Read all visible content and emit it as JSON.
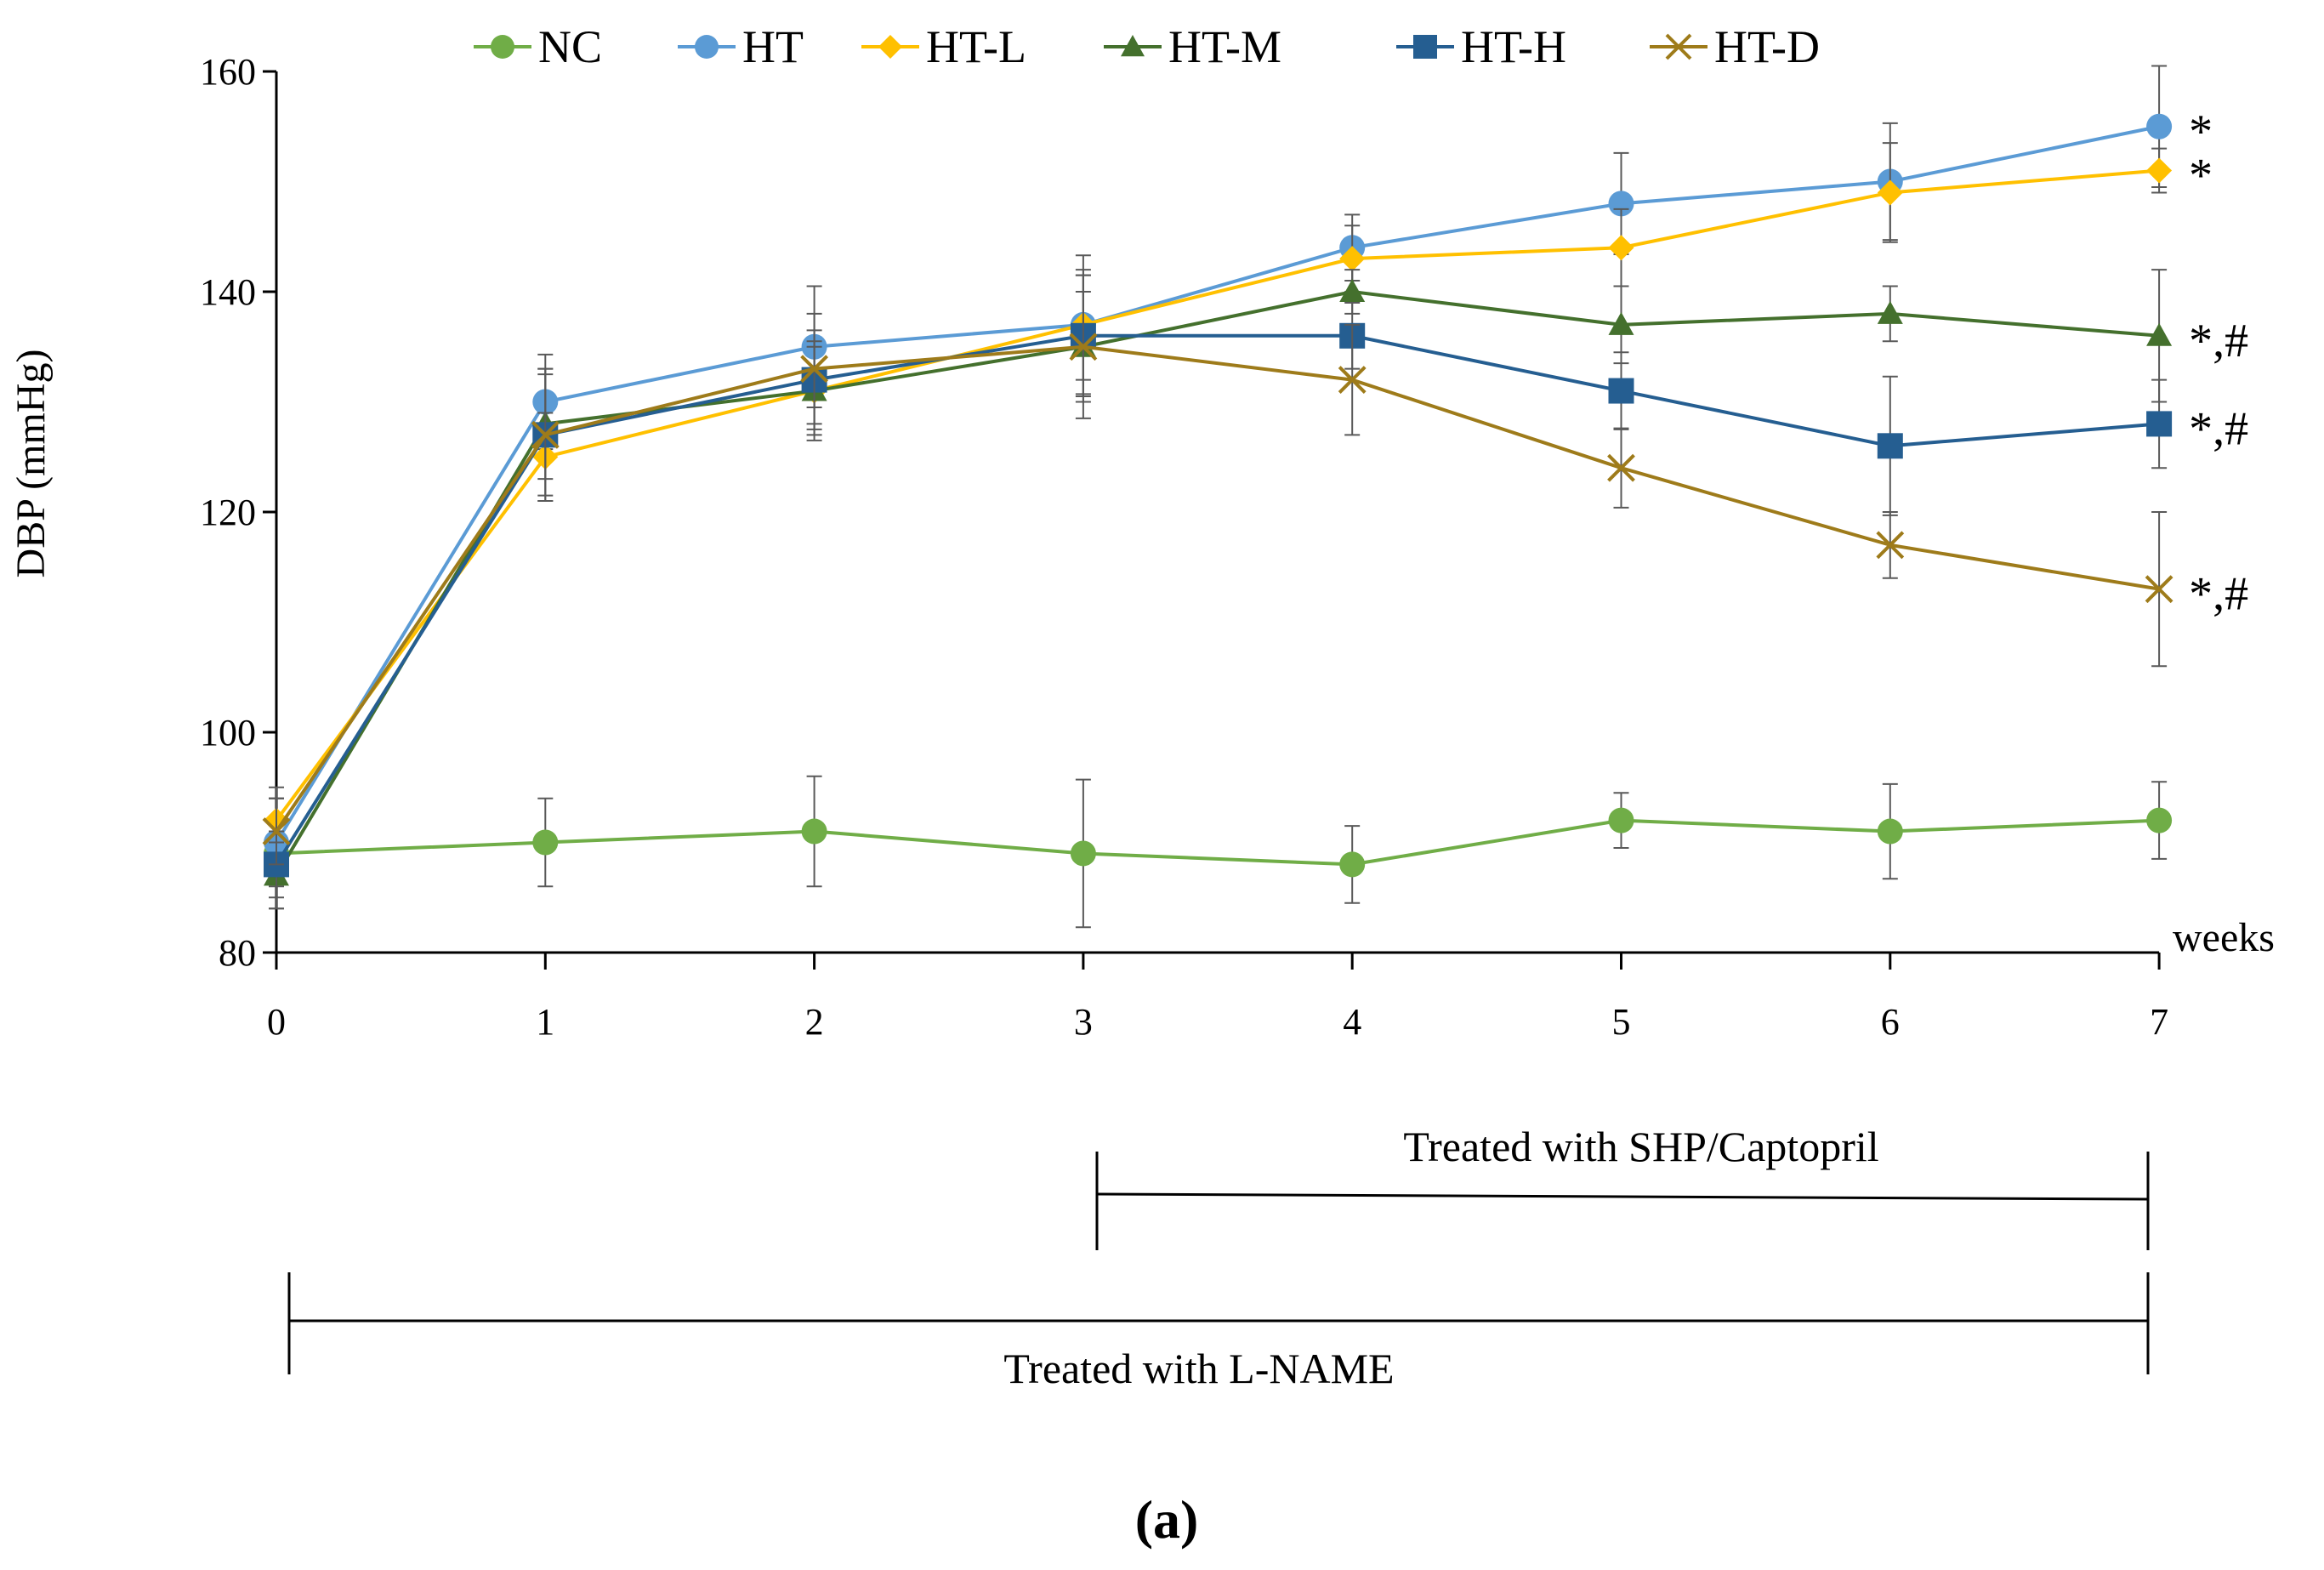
{
  "chart_data": {
    "type": "line",
    "title": "",
    "xlabel": "weeks",
    "ylabel": "DBP (mmHg)",
    "x": [
      0,
      1,
      2,
      3,
      4,
      5,
      6,
      7
    ],
    "x_tick_labels": [
      "0",
      "1",
      "2",
      "3",
      "4",
      "5",
      "6",
      "7"
    ],
    "ylim": [
      80,
      160
    ],
    "y_ticks": [
      80,
      100,
      120,
      140,
      160
    ],
    "y_tick_labels": [
      "80",
      "100",
      "120",
      "140",
      "160"
    ],
    "grid": false,
    "legend_position": "top",
    "series": [
      {
        "name": "NC",
        "color": "#70AD47",
        "marker": "circle",
        "values": [
          89,
          90,
          91,
          89,
          88,
          92,
          91,
          92
        ],
        "errors": [
          5,
          4,
          5,
          6.7,
          3.5,
          2.5,
          4.3,
          3.5
        ]
      },
      {
        "name": "HT",
        "color": "#5B9BD5",
        "marker": "circle",
        "values": [
          90,
          130,
          135,
          137,
          144,
          148,
          150,
          155
        ],
        "errors": [
          4,
          4.3,
          5.5,
          6.3,
          3,
          4.6,
          5.3,
          5.5
        ]
      },
      {
        "name": "HT-L",
        "color": "#FFC000",
        "marker": "diamond",
        "values": [
          92,
          125,
          131,
          137,
          143,
          144,
          149,
          151
        ],
        "errors": [
          3,
          4,
          4.5,
          5,
          3,
          3.5,
          4.5,
          2
        ]
      },
      {
        "name": "HT-M",
        "color": "#44702D",
        "marker": "triangle",
        "values": [
          87,
          128,
          131,
          135,
          140,
          137,
          138,
          136
        ],
        "errors": [
          3,
          5,
          4,
          5,
          2,
          3.5,
          2.5,
          6
        ]
      },
      {
        "name": "HT-H",
        "color": "#255E91",
        "marker": "square",
        "values": [
          88,
          127,
          132,
          136,
          136,
          131,
          126,
          128
        ],
        "errors": [
          3,
          5.5,
          4.5,
          5.5,
          3,
          3.5,
          6.3,
          4
        ]
      },
      {
        "name": "HT-D",
        "color": "#9E7B1A",
        "marker": "x",
        "values": [
          91,
          127,
          133,
          135,
          132,
          124,
          117,
          113
        ],
        "errors": [
          3,
          6,
          5,
          6.5,
          5,
          3.6,
          3,
          7
        ]
      }
    ],
    "significance": [
      {
        "series": "HT",
        "label": "*"
      },
      {
        "series": "HT-L",
        "label": "*"
      },
      {
        "series": "HT-M",
        "label": "*,#"
      },
      {
        "series": "HT-H",
        "label": "*,#"
      },
      {
        "series": "HT-D",
        "label": "*,#"
      }
    ],
    "annotations": {
      "shp_bar": {
        "label": "Treated with SHP/Captopril",
        "from_week": 3,
        "to_week": 7
      },
      "lname_bar": {
        "label": "Treated with L-NAME",
        "from_week": 0,
        "to_week": 7
      }
    },
    "panel_label": "(a)"
  }
}
